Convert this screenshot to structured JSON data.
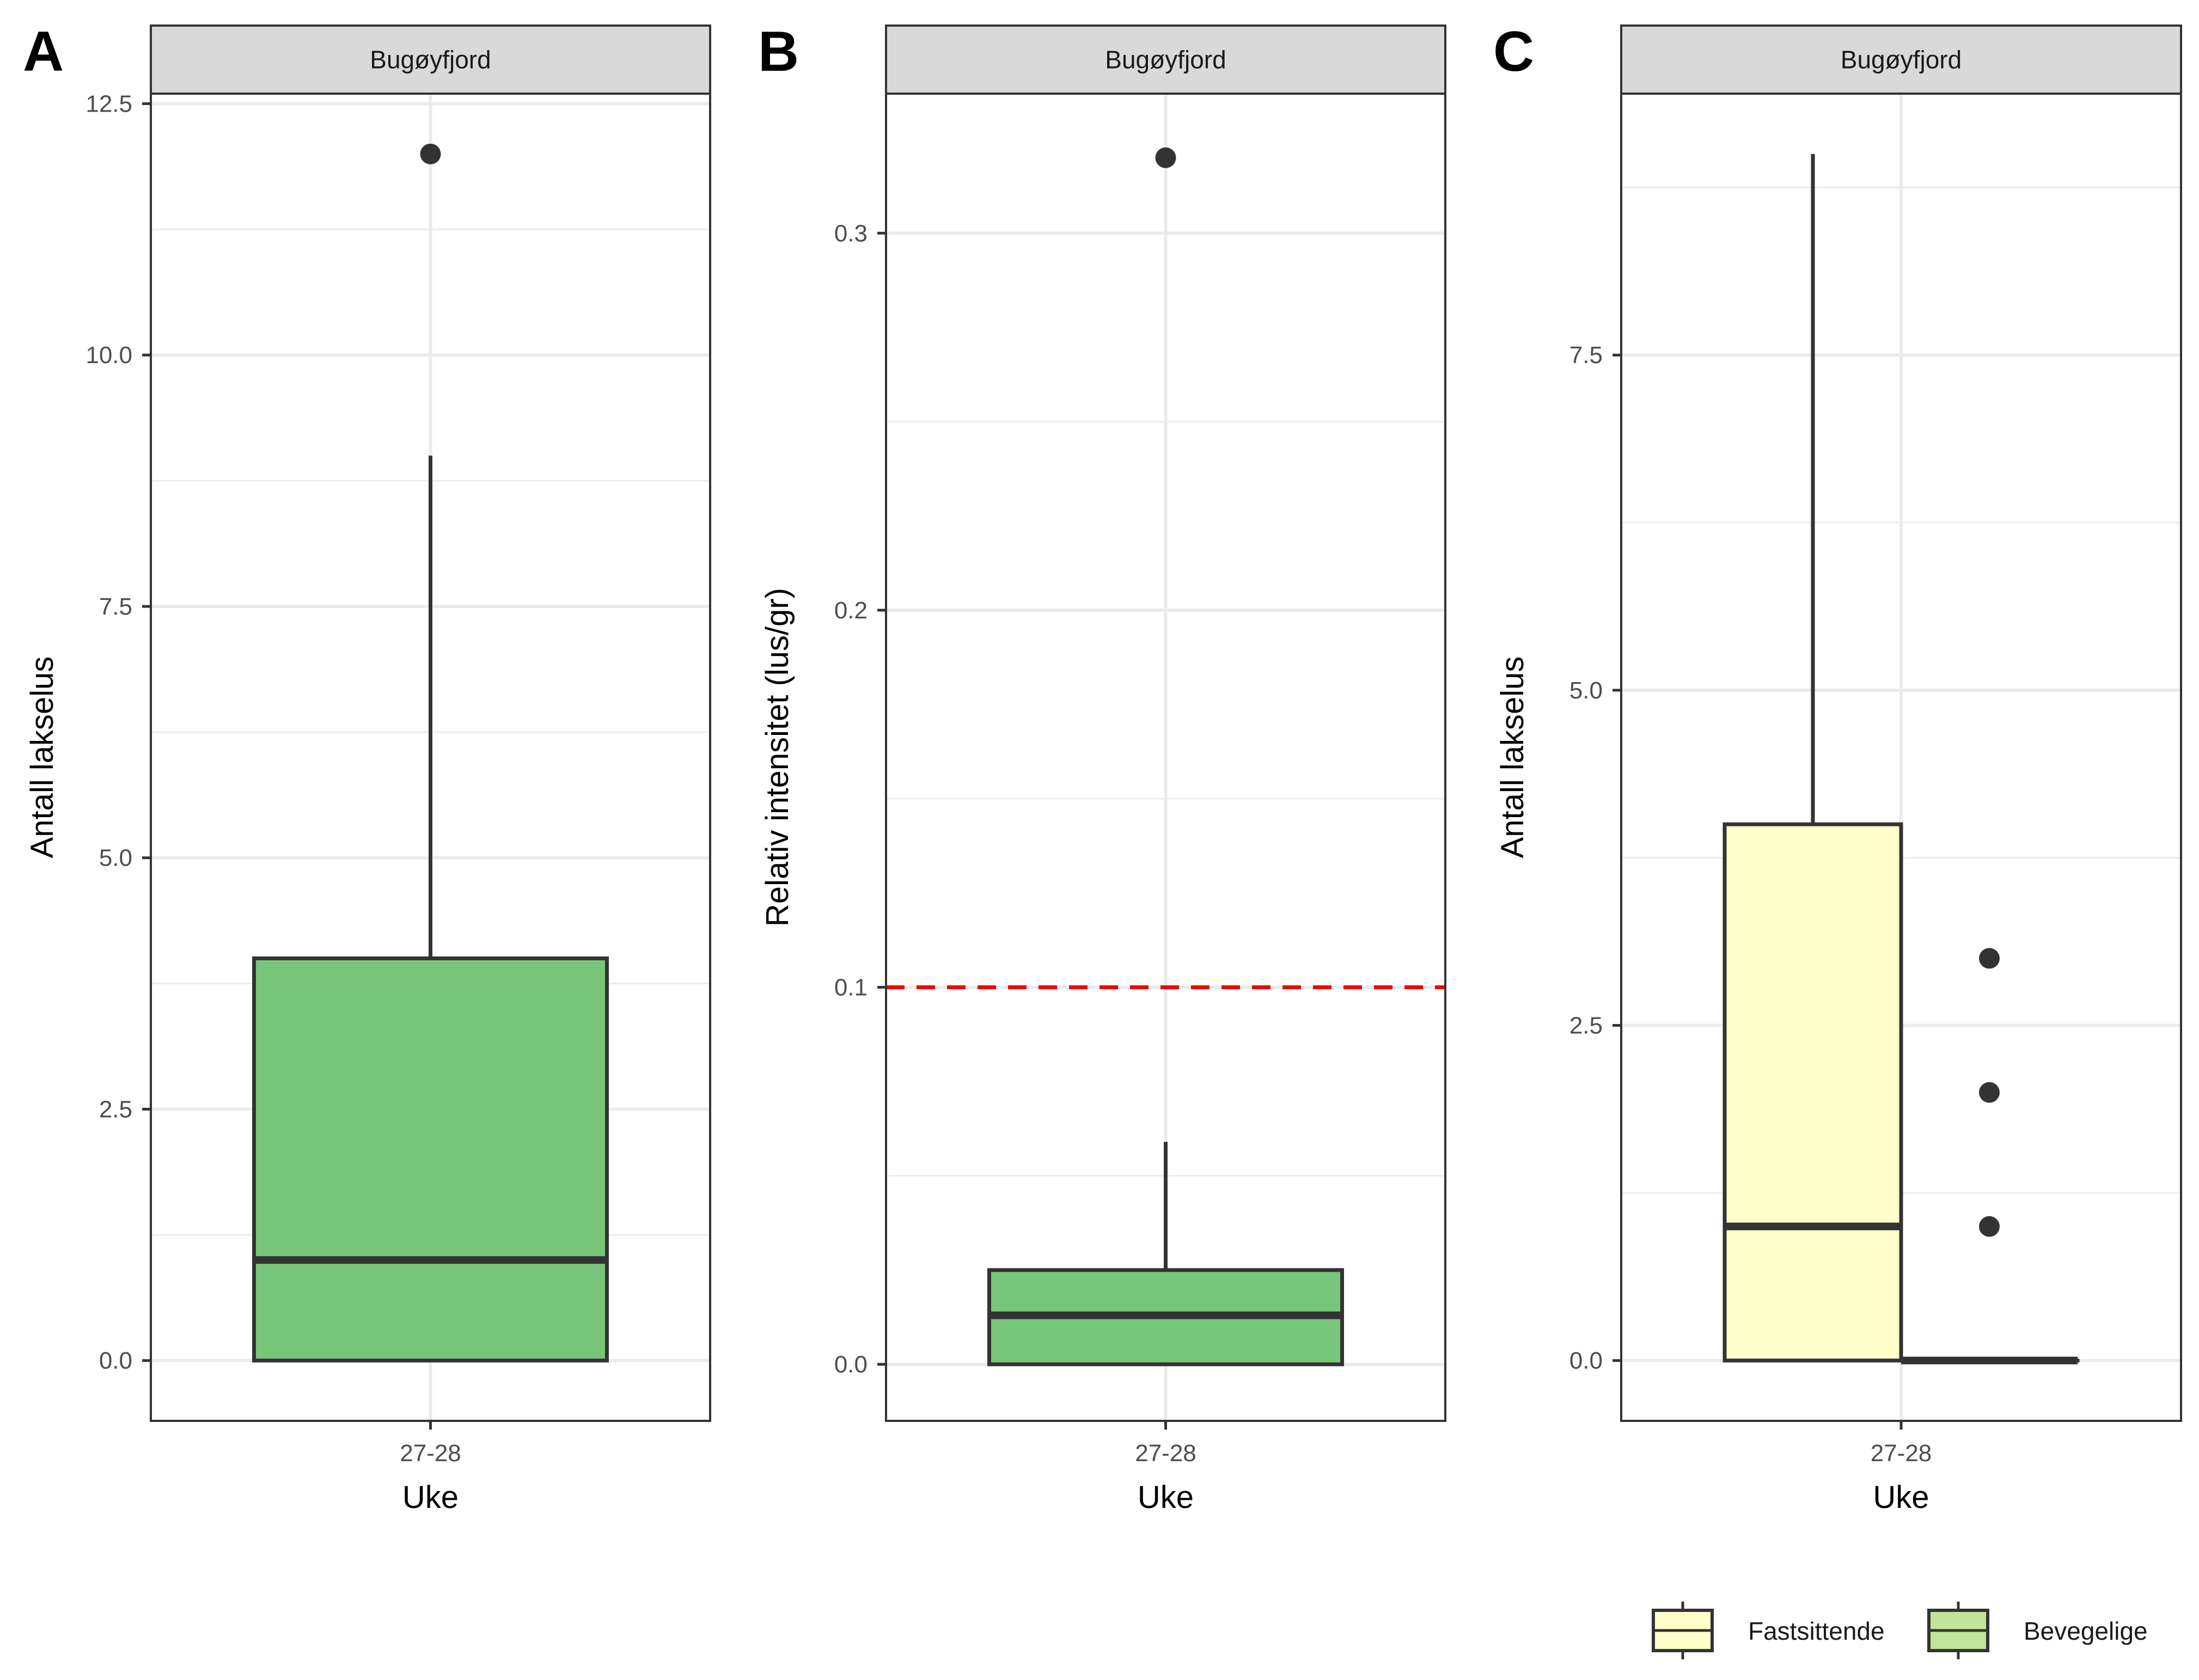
{
  "chart_data": [
    {
      "panel_label": "A",
      "type": "boxplot",
      "strip": "Bugøyfjord",
      "xlabel": "Uke",
      "ylabel": "Antall lakselus",
      "categories": [
        "27-28"
      ],
      "ylim": [
        -0.6,
        12.6
      ],
      "yticks": [
        0,
        2.5,
        5,
        7.5,
        10,
        12.5
      ],
      "ytick_labels": [
        "0.0",
        "2.5",
        "5.0",
        "7.5",
        "10.0",
        "12.5"
      ],
      "grid": true,
      "boxes": [
        {
          "category": "27-28",
          "fill": "#78c679",
          "q1": 0,
          "median": 1,
          "q3": 4,
          "whisker_low": 0,
          "whisker_high": 9,
          "outliers": [
            12
          ]
        }
      ]
    },
    {
      "panel_label": "B",
      "type": "boxplot",
      "strip": "Bugøyfjord",
      "xlabel": "Uke",
      "ylabel": "Relativ intensitet (lus/gr)",
      "categories": [
        "27-28"
      ],
      "ylim": [
        -0.015,
        0.337
      ],
      "yticks": [
        0,
        0.1,
        0.2,
        0.3
      ],
      "ytick_labels": [
        "0.0",
        "0.1",
        "0.2",
        "0.3"
      ],
      "grid": true,
      "reference_line": {
        "y": 0.1,
        "color": "#ee0000",
        "style": "dashed"
      },
      "boxes": [
        {
          "category": "27-28",
          "fill": "#78c679",
          "q1": 0,
          "median": 0.013,
          "q3": 0.025,
          "whisker_low": 0,
          "whisker_high": 0.059,
          "outliers": [
            0.32
          ]
        }
      ]
    },
    {
      "panel_label": "C",
      "type": "boxplot",
      "strip": "Bugøyfjord",
      "xlabel": "Uke",
      "ylabel": "Antall lakselus",
      "categories": [
        "27-28"
      ],
      "ylim": [
        -0.45,
        9.45
      ],
      "yticks": [
        0,
        2.5,
        5,
        7.5
      ],
      "ytick_labels": [
        "0.0",
        "2.5",
        "5.0",
        "7.5"
      ],
      "grid": true,
      "legend_position": "bottom-right",
      "legend": [
        {
          "name": "Fastsittende",
          "fill": "#ffffcc"
        },
        {
          "name": "Bevegelige",
          "fill": "#c2e699"
        }
      ],
      "boxes": [
        {
          "category": "27-28",
          "series": "Fastsittende",
          "fill": "#ffffcc",
          "q1": 0,
          "median": 1,
          "q3": 4,
          "whisker_low": 0,
          "whisker_high": 9,
          "outliers": []
        },
        {
          "category": "27-28",
          "series": "Bevegelige",
          "fill": "#c2e699",
          "q1": 0,
          "median": 0,
          "q3": 0,
          "whisker_low": 0,
          "whisker_high": 0,
          "outliers": [
            1,
            2,
            3
          ]
        }
      ]
    }
  ]
}
